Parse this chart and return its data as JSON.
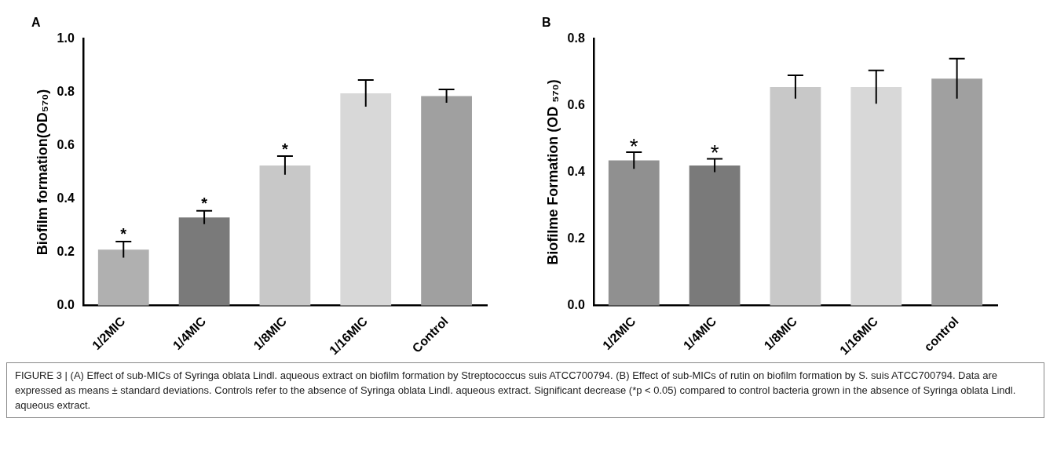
{
  "chart_data": [
    {
      "type": "bar",
      "title": "A",
      "ylabel": "Biofilm formation(OD₅₇₀)",
      "categories": [
        "1/2MIC",
        "1/4MIC",
        "1/8MIC",
        "1/16MIC",
        "Control"
      ],
      "values": [
        0.21,
        0.33,
        0.525,
        0.795,
        0.785
      ],
      "errors": [
        0.03,
        0.025,
        0.035,
        0.05,
        0.025
      ],
      "colors": [
        "#b0b0b0",
        "#7a7a7a",
        "#c8c8c8",
        "#d8d8d8",
        "#a0a0a0"
      ],
      "ylim": [
        0,
        1.0
      ],
      "yticks": [
        {
          "value": 0,
          "label": "0.0"
        },
        {
          "value": 0.2,
          "label": "0.2"
        },
        {
          "value": 0.4,
          "label": "0.4"
        },
        {
          "value": 0.6,
          "label": "0.6"
        },
        {
          "value": 0.8,
          "label": "0.8"
        },
        {
          "value": 1.0,
          "label": "1.0"
        }
      ],
      "grid": false,
      "legend": false,
      "annotations": [
        {
          "text": "*",
          "x": "1/2MIC",
          "y": 0.24
        },
        {
          "text": "*",
          "x": "1/4MIC",
          "y": 0.355
        },
        {
          "text": "*",
          "x": "1/8MIC",
          "y": 0.56
        },
        "FIGURE 3 | (A) Effect of sub-MICs of Syringa oblata Lindl. aqueous extract on biofilm formation by Streptococcus suis ATCC700794. (B) Effect of sub-MICs of rutin on biofilm formation by S. suis ATCC700794. Data are expressed as means ± standard deviations. Controls refer to the absence of Syringa oblata Lindl. aqueous extract. Significant decrease (*p < 0.05) compared to control bacteria grown in the absence of Syringa oblata Lindl. aqueous extract."
      ]
    },
    {
      "type": "bar",
      "title": "B",
      "ylabel": "Biofilme Formation (OD ₅₇₀)",
      "categories": [
        "1/2MIC",
        "1/4MIC",
        "1/8MIC",
        "1/16MIC",
        "control"
      ],
      "values": [
        0.435,
        0.42,
        0.655,
        0.655,
        0.68
      ],
      "errors": [
        0.025,
        0.02,
        0.035,
        0.05,
        0.06
      ],
      "colors": [
        "#909090",
        "#7a7a7a",
        "#c8c8c8",
        "#d8d8d8",
        "#a0a0a0"
      ],
      "ylim": [
        0,
        0.8
      ],
      "yticks": [
        {
          "value": 0,
          "label": "0.0"
        },
        {
          "value": 0.2,
          "label": "0.2"
        },
        {
          "value": 0.4,
          "label": "0.4"
        },
        {
          "value": 0.6,
          "label": "0.6"
        },
        {
          "value": 0.8,
          "label": "0.8"
        }
      ],
      "grid": false,
      "legend": false,
      "annotations": [
        {
          "text": "*",
          "x": "1/2MIC",
          "y": 0.46
        },
        {
          "text": "*",
          "x": "1/4MIC",
          "y": 0.44
        }
      ]
    }
  ]
}
